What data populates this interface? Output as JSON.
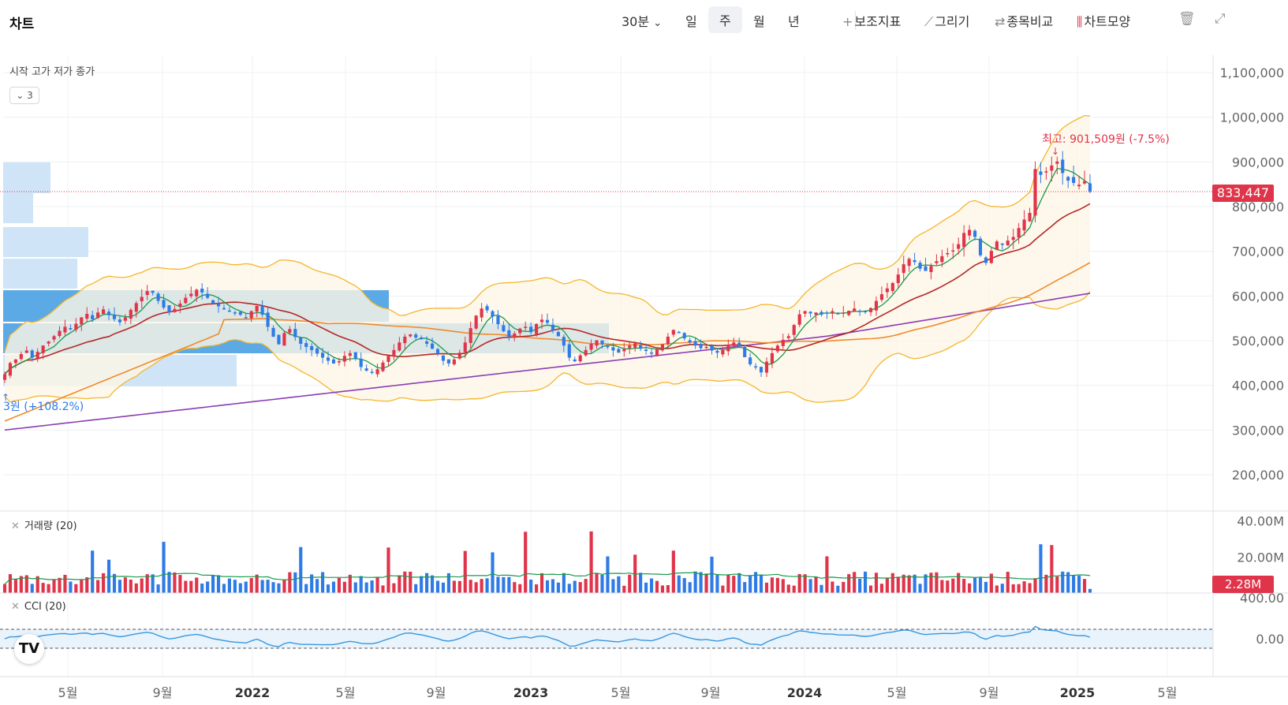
{
  "app": {
    "title": "차트"
  },
  "toolbar": {
    "interval": "30분",
    "periods": [
      "일",
      "주",
      "월",
      "년"
    ],
    "active_period": "주",
    "indicators": "보조지표",
    "drawing": "그리기",
    "compare": "종목비교",
    "chart_style": "차트모양"
  },
  "legend": {
    "ohlc": "시작 고가 저가 종가",
    "collapsed_count": "3"
  },
  "markers": {
    "high": "최고: 901,509원 (-7.5%)",
    "low": "3원 (+108.2%)"
  },
  "current_price": "833,447",
  "volume_panel": {
    "label": "거래량 (20)",
    "current": "2.28M"
  },
  "cci_panel": {
    "label": "CCI (20)"
  },
  "colors": {
    "up": "#e0344a",
    "down": "#2f7be6",
    "ma5": "#1a9a4a",
    "ma20": "#b52828",
    "ma60": "#f08a2c",
    "ma120": "#8b3db5",
    "bollinger": "#f5b52c",
    "volume_profile": "#3f9be0",
    "cci": "#3a97dc"
  },
  "chart_data": {
    "type": "candlestick",
    "x_ticks": [
      "5월",
      "9월",
      "2022",
      "5월",
      "9월",
      "2023",
      "5월",
      "9월",
      "2024",
      "5월",
      "9월",
      "2025",
      "5월"
    ],
    "y_ticks": [
      "1,100,000",
      "1,000,000",
      "900,000",
      "800,000",
      "700,000",
      "600,000",
      "500,000",
      "400,000",
      "300,000",
      "200,000"
    ],
    "ylim": [
      140000,
      1100000
    ],
    "volume_ticks": [
      "40.00M",
      "20.00M"
    ],
    "cci_ticks": [
      "400.00",
      "0.00"
    ],
    "weekly_close": [
      425000,
      450000,
      458000,
      470000,
      478000,
      462000,
      475000,
      489000,
      498000,
      510000,
      522000,
      531000,
      528000,
      538000,
      552000,
      560000,
      548000,
      563000,
      570000,
      557000,
      548000,
      541000,
      552000,
      569000,
      584000,
      598000,
      611000,
      607000,
      589000,
      574000,
      563000,
      571000,
      583000,
      596000,
      605000,
      614000,
      608000,
      596000,
      583000,
      577000,
      570000,
      565000,
      561000,
      558000,
      551000,
      566000,
      578000,
      558000,
      531000,
      509000,
      492000,
      517000,
      526000,
      508000,
      493000,
      486000,
      479000,
      471000,
      462000,
      455000,
      449000,
      454000,
      466000,
      472000,
      460000,
      441000,
      433000,
      429000,
      436000,
      451000,
      466000,
      479000,
      496000,
      509000,
      514000,
      507000,
      503000,
      493000,
      482000,
      471000,
      455000,
      449000,
      458000,
      473000,
      496000,
      528000,
      556000,
      572000,
      568000,
      554000,
      537000,
      521000,
      509000,
      516000,
      527000,
      531000,
      519000,
      537000,
      547000,
      540000,
      522000,
      510000,
      489000,
      462000,
      454000,
      467000,
      479000,
      493000,
      501000,
      492000,
      486000,
      478000,
      473000,
      481000,
      489000,
      494000,
      482000,
      477000,
      471000,
      480000,
      492000,
      509000,
      524000,
      519000,
      505000,
      496000,
      489000,
      483000,
      486000,
      478000,
      473000,
      479000,
      491000,
      496000,
      487000,
      463000,
      447000,
      441000,
      429000,
      453000,
      472000,
      489000,
      502000,
      510000,
      535000,
      559000,
      566000,
      561000,
      563000,
      558000,
      561000,
      566000,
      560000,
      563000,
      567000,
      572000,
      565000,
      564000,
      573000,
      589000,
      604000,
      617000,
      629000,
      648000,
      671000,
      683000,
      676000,
      661000,
      656000,
      667000,
      678000,
      689000,
      696000,
      702000,
      716000,
      741000,
      748000,
      732000,
      691000,
      674000,
      701000,
      722000,
      716000,
      724000,
      732000,
      752000,
      771000,
      786000,
      884000,
      871000,
      879000,
      892000,
      901000,
      875000,
      858000,
      853000,
      849000,
      857000,
      833447
    ],
    "series": [
      {
        "name": "거래량 (20)"
      },
      {
        "name": "CCI (20)"
      }
    ]
  }
}
